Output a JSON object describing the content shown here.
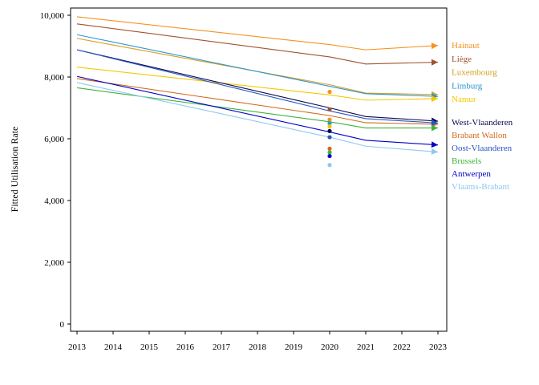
{
  "chart_data": {
    "type": "line",
    "title": "",
    "xlabel": "",
    "ylabel": "Fitted Utilisation Rate",
    "xlim": [
      2013,
      2023
    ],
    "ylim": [
      0,
      10200
    ],
    "x_ticks": [
      2013,
      2014,
      2015,
      2016,
      2017,
      2018,
      2019,
      2020,
      2021,
      2022,
      2023
    ],
    "y_ticks": [
      0,
      2000,
      4000,
      6000,
      8000,
      10000
    ],
    "y_tick_labels": [
      "0",
      "2,000",
      "4,000",
      "6,000",
      "8,000",
      "10,000"
    ],
    "x": [
      2013,
      2020,
      2021,
      2023
    ],
    "grid": false,
    "legend": "right, labels at line ends",
    "series": [
      {
        "name": "Hainaut",
        "color": "#f5921e",
        "values": [
          9950,
          9050,
          8880,
          9020
        ],
        "point_2020": 7520
      },
      {
        "name": "Liège",
        "color": "#a0522d",
        "values": [
          9720,
          8650,
          8420,
          8480
        ],
        "point_2020": 6950
      },
      {
        "name": "Luxembourg",
        "color": "#d4a020",
        "values": [
          9250,
          7750,
          7480,
          7430
        ],
        "point_2020": 6620
      },
      {
        "name": "Limburg",
        "color": "#2e95d3",
        "values": [
          9370,
          7700,
          7460,
          7370
        ],
        "point_2020": 6500
      },
      {
        "name": "Namur",
        "color": "#f5c800",
        "values": [
          8320,
          7420,
          7250,
          7300
        ],
        "point_2020": 6400
      },
      {
        "name": "West-Vlaanderen",
        "color": "#0a0a50",
        "values": [
          8880,
          7000,
          6720,
          6570
        ],
        "point_2020": 6250
      },
      {
        "name": "Brabant Wallon",
        "color": "#d2691e",
        "values": [
          7950,
          6750,
          6520,
          6470
        ],
        "point_2020": 5680
      },
      {
        "name": "Oost-Vlaanderen",
        "color": "#2b55c0",
        "values": [
          8880,
          6900,
          6650,
          6510
        ],
        "point_2020": 6050
      },
      {
        "name": "Brussels",
        "color": "#3cb43c",
        "values": [
          7650,
          6550,
          6350,
          6350
        ],
        "point_2020": 5560
      },
      {
        "name": "Antwerpen",
        "color": "#0000c8",
        "values": [
          8020,
          6220,
          5950,
          5800
        ],
        "point_2020": 5440
      },
      {
        "name": "Vlaams-Brabant",
        "color": "#8fc8f0",
        "values": [
          7820,
          6050,
          5760,
          5570
        ],
        "point_2020": 5150
      }
    ]
  }
}
